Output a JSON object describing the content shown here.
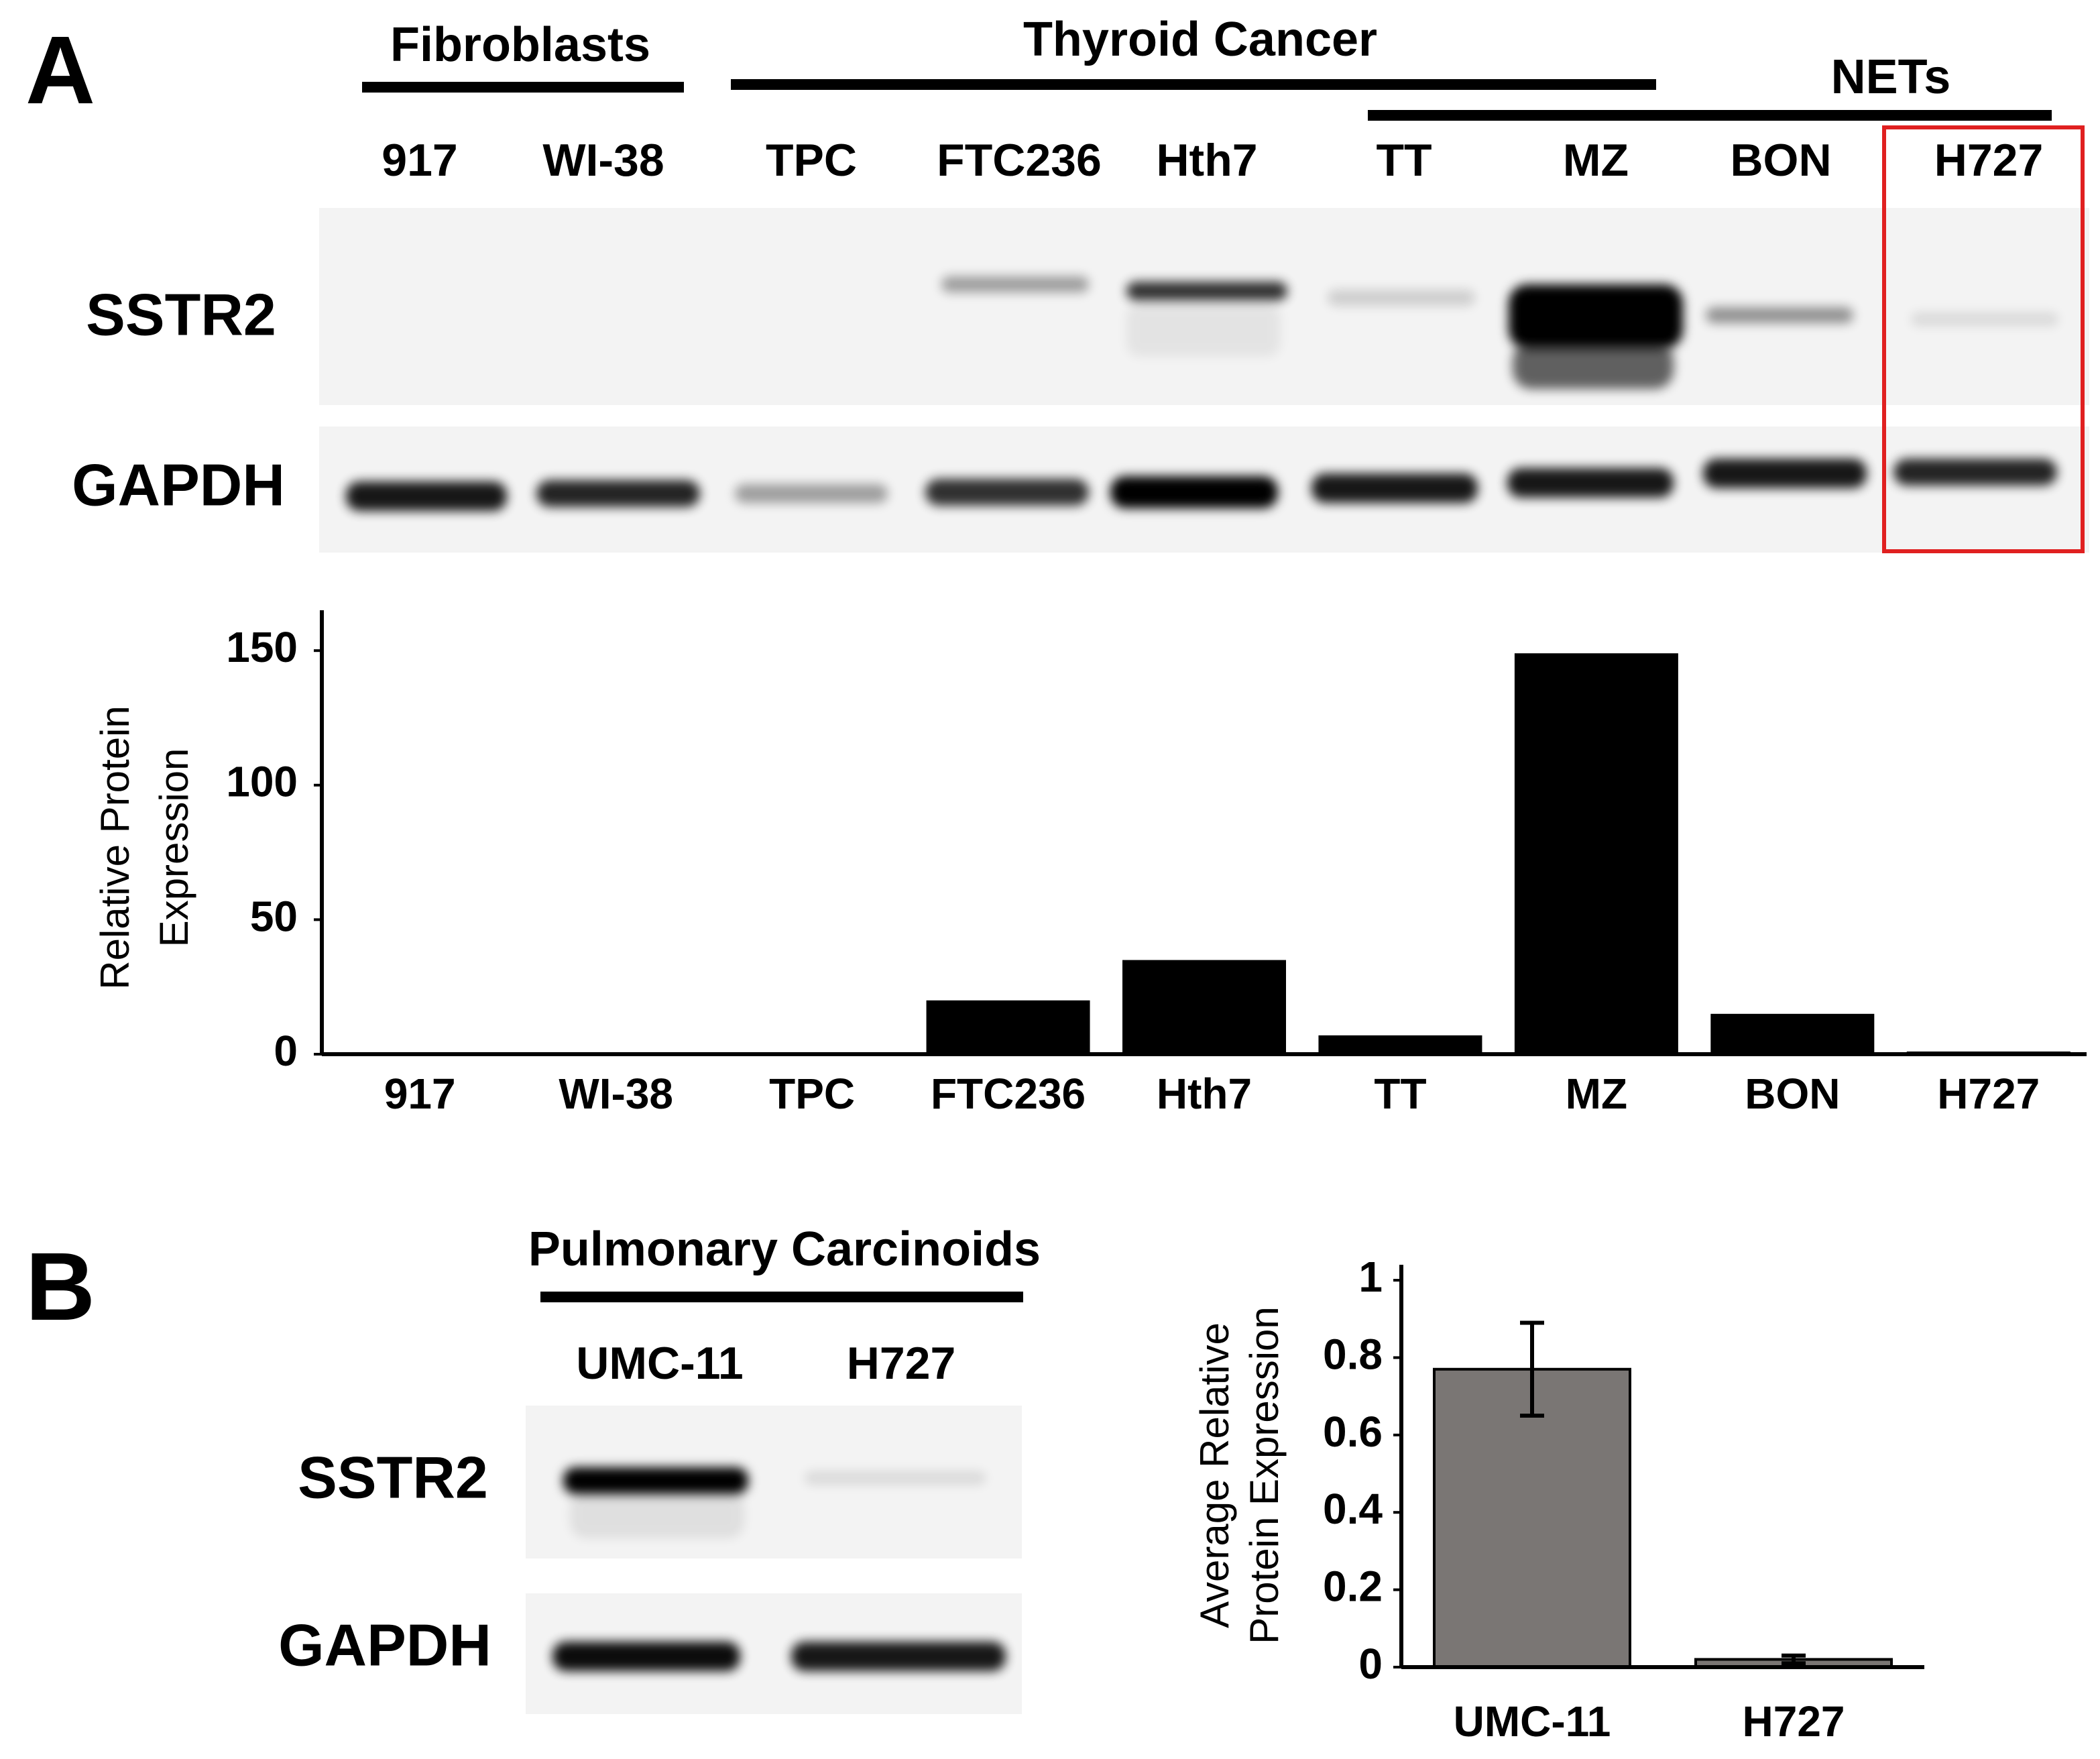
{
  "panel_a": {
    "label": "A",
    "groups": [
      "Fibroblasts",
      "Thyroid Cancer",
      "NETs"
    ],
    "lanes": [
      "917",
      "WI-38",
      "TPC",
      "FTC236",
      "Hth7",
      "TT",
      "MZ",
      "BON",
      "H727"
    ],
    "rows": [
      "SSTR2",
      "GAPDH"
    ]
  },
  "panel_b": {
    "label": "B",
    "groups": [
      "Pulmonary Carcinoids"
    ],
    "lanes": [
      "UMC-11",
      "H727"
    ],
    "rows": [
      "SSTR2",
      "GAPDH"
    ]
  },
  "chart_data": [
    {
      "type": "bar",
      "categories": [
        "917",
        "WI-38",
        "TPC",
        "FTC236",
        "Hth7",
        "TT",
        "MZ",
        "BON",
        "H727"
      ],
      "values": [
        0,
        0,
        0,
        20,
        35,
        7,
        149,
        15,
        1
      ],
      "color": "#000000",
      "ylabel": [
        "Relative Protein",
        "Expression"
      ],
      "ylim": [
        0,
        165
      ],
      "yticks": [
        0,
        50,
        100,
        150
      ]
    },
    {
      "type": "bar",
      "categories": [
        "UMC-11",
        "H727"
      ],
      "values": [
        0.77,
        0.02
      ],
      "errors": [
        0.12,
        0.01
      ],
      "color": "#7a7674",
      "ylabel": [
        "Average Relative",
        "Protein Expression"
      ],
      "ylim": [
        0,
        1.04
      ],
      "yticks": [
        0,
        0.2,
        0.4,
        0.6,
        0.8,
        1
      ]
    }
  ]
}
